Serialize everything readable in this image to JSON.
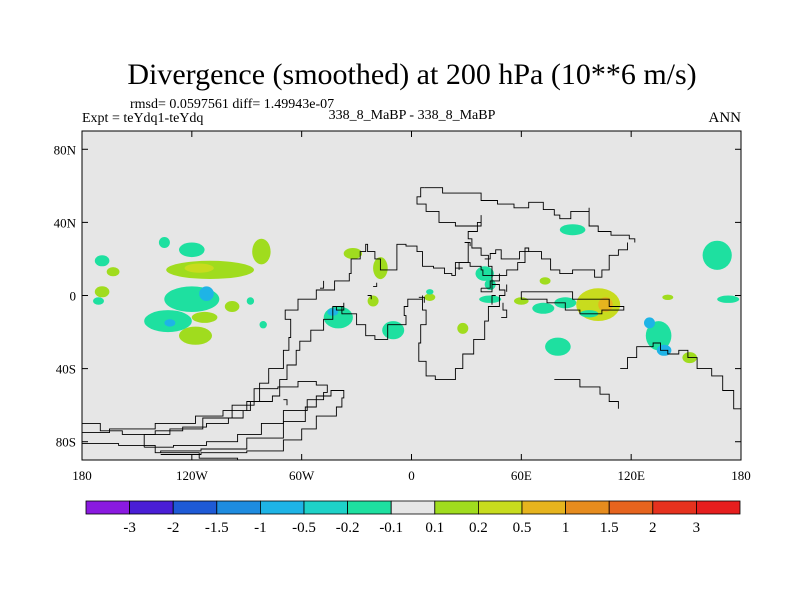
{
  "chart_data": {
    "type": "heatmap",
    "title": "Divergence (smoothed) at 200 hPa (10**6 m/s)",
    "subtitle_stats": "rmsd= 0.0597561 diff= 1.49943e-07",
    "left_label": "Expt = teYdq1-teYdq",
    "center_label": "338_8_MaBP - 338_8_MaBP",
    "right_label": "ANN",
    "xlim": [
      -180,
      180
    ],
    "ylim": [
      -90,
      90
    ],
    "x_ticks": [
      {
        "value": -180,
        "label": "180"
      },
      {
        "value": -120,
        "label": "120W"
      },
      {
        "value": -60,
        "label": "60W"
      },
      {
        "value": 0,
        "label": "0"
      },
      {
        "value": 60,
        "label": "60E"
      },
      {
        "value": 120,
        "label": "120E"
      },
      {
        "value": 180,
        "label": "180"
      }
    ],
    "y_ticks": [
      {
        "value": 80,
        "label": "80N"
      },
      {
        "value": 40,
        "label": "40N"
      },
      {
        "value": 0,
        "label": "0"
      },
      {
        "value": -40,
        "label": "40S"
      },
      {
        "value": -80,
        "label": "80S"
      }
    ],
    "background_color": "#e6e6e6",
    "colorbar": {
      "colors": [
        "#8a1ae0",
        "#4a1ed6",
        "#1e5ad6",
        "#1e8ce0",
        "#1eb4e6",
        "#1ed2c8",
        "#1ee0a0",
        "#e6e6e6",
        "#a0dc1e",
        "#c8dc1e",
        "#e6b41e",
        "#e68c1e",
        "#e6641e",
        "#e6321e",
        "#e61e1e"
      ],
      "labels": [
        "-3",
        "-2",
        "-1.5",
        "-1",
        "-0.5",
        "-0.2",
        "-0.1",
        "0.1",
        "0.2",
        "0.5",
        "1",
        "1.5",
        "2",
        "3"
      ]
    },
    "regions": [
      {
        "lon": -169,
        "lat": 19,
        "rlon": 4,
        "rlat": 3,
        "color": "#1ee0a0"
      },
      {
        "lon": -163,
        "lat": 13,
        "rlon": 3.5,
        "rlat": 2.5,
        "color": "#a0dc1e"
      },
      {
        "lon": -169,
        "lat": 2,
        "rlon": 4,
        "rlat": 3,
        "color": "#a0dc1e"
      },
      {
        "lon": -171,
        "lat": -3,
        "rlon": 3,
        "rlat": 2,
        "color": "#1ee0a0"
      },
      {
        "lon": -135,
        "lat": 29,
        "rlon": 3,
        "rlat": 3,
        "color": "#1ee0a0"
      },
      {
        "lon": -120,
        "lat": 25,
        "rlon": 7,
        "rlat": 4,
        "color": "#1ee0a0"
      },
      {
        "lon": -110,
        "lat": 14,
        "rlon": 24,
        "rlat": 5,
        "color": "#a0dc1e"
      },
      {
        "lon": -116,
        "lat": 15,
        "rlon": 8,
        "rlat": 2.5,
        "color": "#c8dc1e"
      },
      {
        "lon": -82,
        "lat": 24,
        "rlon": 5,
        "rlat": 7,
        "color": "#a0dc1e"
      },
      {
        "lon": -120,
        "lat": -2,
        "rlon": 15,
        "rlat": 7,
        "color": "#1ee0a0"
      },
      {
        "lon": -112,
        "lat": 1,
        "rlon": 4,
        "rlat": 4,
        "color": "#1eb4e6"
      },
      {
        "lon": -133,
        "lat": -14,
        "rlon": 13,
        "rlat": 6,
        "color": "#1ee0a0"
      },
      {
        "lon": -132,
        "lat": -15,
        "rlon": 3,
        "rlat": 2,
        "color": "#1eb4e6"
      },
      {
        "lon": -113,
        "lat": -12,
        "rlon": 7,
        "rlat": 3,
        "color": "#a0dc1e"
      },
      {
        "lon": -118,
        "lat": -22,
        "rlon": 9,
        "rlat": 5,
        "color": "#a0dc1e"
      },
      {
        "lon": -98,
        "lat": -6,
        "rlon": 4,
        "rlat": 3,
        "color": "#a0dc1e"
      },
      {
        "lon": -88,
        "lat": -3,
        "rlon": 2,
        "rlat": 2,
        "color": "#1ee0a0"
      },
      {
        "lon": -81,
        "lat": -16,
        "rlon": 2,
        "rlat": 2,
        "color": "#1ee0a0"
      },
      {
        "lon": -40,
        "lat": -12,
        "rlon": 8,
        "rlat": 6,
        "color": "#1ee0a0"
      },
      {
        "lon": -43,
        "lat": -9,
        "rlon": 3,
        "rlat": 2,
        "color": "#1eb4e6"
      },
      {
        "lon": -32,
        "lat": 23,
        "rlon": 5,
        "rlat": 3,
        "color": "#a0dc1e"
      },
      {
        "lon": -17,
        "lat": 15,
        "rlon": 4,
        "rlat": 6,
        "color": "#a0dc1e"
      },
      {
        "lon": -21,
        "lat": -3,
        "rlon": 3,
        "rlat": 3,
        "color": "#a0dc1e"
      },
      {
        "lon": -10,
        "lat": -19,
        "rlon": 6,
        "rlat": 5,
        "color": "#1ee0a0"
      },
      {
        "lon": 10,
        "lat": -1,
        "rlon": 3,
        "rlat": 2,
        "color": "#a0dc1e"
      },
      {
        "lon": 28,
        "lat": -18,
        "rlon": 3,
        "rlat": 3,
        "color": "#a0dc1e"
      },
      {
        "lon": 40,
        "lat": 12,
        "rlon": 5,
        "rlat": 4,
        "color": "#1ee0a0"
      },
      {
        "lon": 43,
        "lat": 6,
        "rlon": 3,
        "rlat": 3,
        "color": "#1ee0a0"
      },
      {
        "lon": 43,
        "lat": -2,
        "rlon": 6,
        "rlat": 2,
        "color": "#1ee0a0"
      },
      {
        "lon": 60,
        "lat": -3,
        "rlon": 4,
        "rlat": 2,
        "color": "#a0dc1e"
      },
      {
        "lon": 73,
        "lat": 8,
        "rlon": 3,
        "rlat": 2,
        "color": "#a0dc1e"
      },
      {
        "lon": 72,
        "lat": -7,
        "rlon": 6,
        "rlat": 3,
        "color": "#1ee0a0"
      },
      {
        "lon": 84,
        "lat": -4,
        "rlon": 6,
        "rlat": 3,
        "color": "#1ee0a0"
      },
      {
        "lon": 102,
        "lat": -5,
        "rlon": 12,
        "rlat": 9,
        "color": "#c8dc1e"
      },
      {
        "lon": 106,
        "lat": -5,
        "rlon": 4,
        "rlat": 4,
        "color": "#e6b41e"
      },
      {
        "lon": 97,
        "lat": -10,
        "rlon": 5,
        "rlat": 2,
        "color": "#1ee0a0"
      },
      {
        "lon": 88,
        "lat": 36,
        "rlon": 7,
        "rlat": 3,
        "color": "#1ee0a0"
      },
      {
        "lon": 80,
        "lat": -28,
        "rlon": 7,
        "rlat": 5,
        "color": "#1ee0a0"
      },
      {
        "lon": 135,
        "lat": -22,
        "rlon": 7,
        "rlat": 8,
        "color": "#1ee0a0"
      },
      {
        "lon": 130,
        "lat": -15,
        "rlon": 3,
        "rlat": 3,
        "color": "#1eb4e6"
      },
      {
        "lon": 138,
        "lat": -30,
        "rlon": 4,
        "rlat": 3,
        "color": "#1eb4e6"
      },
      {
        "lon": 152,
        "lat": -34,
        "rlon": 4,
        "rlat": 3,
        "color": "#a0dc1e"
      },
      {
        "lon": 167,
        "lat": 22,
        "rlon": 8,
        "rlat": 8,
        "color": "#1ee0a0"
      },
      {
        "lon": 173,
        "lat": -2,
        "rlon": 6,
        "rlat": 2,
        "color": "#1ee0a0"
      },
      {
        "lon": 140,
        "lat": -1,
        "rlon": 3,
        "rlat": 1.5,
        "color": "#a0dc1e"
      },
      {
        "lon": 10,
        "lat": 2,
        "rlon": 2,
        "rlat": 1.5,
        "color": "#1ee0a0"
      }
    ],
    "coastlines": [
      [
        [
          -180,
          -70
        ],
        [
          -170,
          -74
        ],
        [
          -158,
          -76
        ],
        [
          -140,
          -74
        ],
        [
          -125,
          -72
        ],
        [
          -112,
          -70
        ],
        [
          -100,
          -67
        ],
        [
          -92,
          -63
        ],
        [
          -88,
          -58
        ],
        [
          -83,
          -48
        ],
        [
          -78,
          -40
        ],
        [
          -70,
          -30
        ],
        [
          -67,
          -23
        ],
        [
          -66,
          -13
        ],
        [
          -69,
          -8
        ],
        [
          -62,
          -2
        ],
        [
          -52,
          3
        ],
        [
          -42,
          8
        ],
        [
          -34,
          12
        ],
        [
          -33,
          20
        ],
        [
          -28,
          24
        ],
        [
          -25,
          28
        ],
        [
          -24,
          24
        ],
        [
          -20,
          20
        ],
        [
          -17,
          14
        ],
        [
          -8,
          17
        ],
        [
          -8,
          28
        ],
        [
          -3,
          27
        ],
        [
          3,
          24
        ],
        [
          6,
          16
        ],
        [
          12,
          15
        ],
        [
          18,
          12
        ],
        [
          22,
          11
        ],
        [
          24,
          18
        ],
        [
          32,
          16
        ],
        [
          38,
          14
        ],
        [
          39,
          11
        ],
        [
          44,
          6
        ],
        [
          48,
          3
        ],
        [
          51,
          0
        ],
        [
          48,
          -6
        ],
        [
          42,
          -14
        ],
        [
          40,
          -24
        ],
        [
          34,
          -32
        ],
        [
          28,
          -40
        ],
        [
          24,
          -46
        ],
        [
          13,
          -44
        ],
        [
          8,
          -36
        ],
        [
          4,
          -26
        ],
        [
          5,
          -16
        ],
        [
          8,
          -8
        ],
        [
          6,
          -2
        ],
        [
          6,
          0
        ],
        [
          6,
          -2
        ],
        [
          -2,
          -6
        ],
        [
          -4,
          -11
        ],
        [
          -3,
          -16
        ],
        [
          -13,
          -24
        ],
        [
          -20,
          -22
        ],
        [
          -25,
          -16
        ],
        [
          -30,
          -10
        ],
        [
          -38,
          -6
        ],
        [
          -43,
          -13
        ],
        [
          -48,
          -19
        ],
        [
          -55,
          -25
        ],
        [
          -61,
          -30
        ],
        [
          -63,
          -38
        ],
        [
          -68,
          -46
        ],
        [
          -72,
          -55
        ],
        [
          -76,
          -58
        ],
        [
          -82,
          -58
        ],
        [
          -90,
          -63
        ],
        [
          -103,
          -66
        ],
        [
          -118,
          -70
        ],
        [
          -140,
          -73
        ],
        [
          -165,
          -75
        ],
        [
          -180,
          -75
        ]
      ],
      [
        [
          -146,
          -83
        ],
        [
          -130,
          -82
        ],
        [
          -112,
          -80
        ],
        [
          -95,
          -76
        ],
        [
          -82,
          -70
        ],
        [
          -70,
          -63
        ],
        [
          -57,
          -57
        ],
        [
          -48,
          -53
        ],
        [
          -46,
          -49
        ],
        [
          -52,
          -47
        ],
        [
          -62,
          -50
        ],
        [
          -73,
          -51
        ],
        [
          -86,
          -60
        ],
        [
          -98,
          -67
        ],
        [
          -114,
          -73
        ],
        [
          -132,
          -76
        ],
        [
          -146,
          -79
        ],
        [
          -146,
          -83
        ]
      ],
      [
        [
          -137,
          -87
        ],
        [
          -115,
          -86
        ],
        [
          -90,
          -85
        ],
        [
          -70,
          -79
        ],
        [
          -60,
          -73
        ],
        [
          -52,
          -66
        ],
        [
          -41,
          -61
        ],
        [
          -38,
          -56
        ],
        [
          -37,
          -52
        ],
        [
          -44,
          -55
        ],
        [
          -52,
          -61
        ],
        [
          -58,
          -69
        ],
        [
          -70,
          -78
        ],
        [
          -90,
          -84
        ],
        [
          -115,
          -85
        ],
        [
          -137,
          -86
        ]
      ],
      [
        [
          -180,
          -81
        ],
        [
          -160,
          -82
        ],
        [
          -140,
          -86
        ],
        [
          -116,
          -89
        ],
        [
          -95,
          -90
        ],
        [
          -60,
          -90
        ]
      ],
      [
        [
          7,
          59
        ],
        [
          17,
          59
        ],
        [
          17,
          56
        ],
        [
          28,
          56
        ],
        [
          38,
          52
        ],
        [
          47,
          50
        ],
        [
          56,
          48
        ],
        [
          64,
          51
        ],
        [
          72,
          47
        ],
        [
          78,
          44
        ],
        [
          81,
          42
        ],
        [
          87,
          46
        ],
        [
          97,
          48
        ],
        [
          97,
          38
        ],
        [
          102,
          35
        ],
        [
          109,
          33
        ],
        [
          119,
          31
        ],
        [
          122,
          29
        ]
      ],
      [
        [
          7,
          59
        ],
        [
          5,
          54
        ],
        [
          3,
          50
        ],
        [
          8,
          46
        ],
        [
          15,
          40
        ],
        [
          24,
          38
        ],
        [
          34,
          38
        ],
        [
          38,
          44
        ],
        [
          38,
          40
        ],
        [
          36,
          35
        ],
        [
          31,
          31
        ],
        [
          33,
          26
        ],
        [
          38,
          22
        ],
        [
          42,
          16
        ],
        [
          44,
          11
        ],
        [
          52,
          14
        ],
        [
          58,
          18
        ],
        [
          62,
          24
        ],
        [
          71,
          20
        ],
        [
          76,
          14
        ],
        [
          81,
          12
        ],
        [
          88,
          14
        ],
        [
          93,
          14
        ],
        [
          100,
          10
        ],
        [
          104,
          14
        ],
        [
          108,
          22
        ],
        [
          113,
          25
        ],
        [
          118,
          29
        ]
      ],
      [
        [
          60,
          0
        ],
        [
          60,
          2
        ],
        [
          88,
          2
        ],
        [
          88,
          -2
        ],
        [
          104,
          -2
        ],
        [
          108,
          -6
        ],
        [
          116,
          -8
        ],
        [
          104,
          -10
        ],
        [
          92,
          -8
        ],
        [
          84,
          -4
        ],
        [
          74,
          -2
        ],
        [
          60,
          -2
        ],
        [
          60,
          0
        ]
      ],
      [
        [
          114,
          -40
        ],
        [
          118,
          -34
        ],
        [
          123,
          -28
        ],
        [
          132,
          -26
        ],
        [
          136,
          -30
        ],
        [
          140,
          -32
        ],
        [
          146,
          -30
        ],
        [
          151,
          -34
        ],
        [
          156,
          -40
        ],
        [
          164,
          -44
        ],
        [
          170,
          -52
        ],
        [
          176,
          -62
        ],
        [
          180,
          -70
        ]
      ],
      [
        [
          78,
          -46
        ],
        [
          92,
          -50
        ],
        [
          103,
          -54
        ],
        [
          108,
          -58
        ],
        [
          113,
          -62
        ]
      ],
      [
        [
          40,
          20
        ],
        [
          43,
          23
        ],
        [
          46,
          25
        ],
        [
          49,
          20
        ],
        [
          56,
          20
        ],
        [
          59,
          24
        ],
        [
          62,
          26
        ],
        [
          64,
          24
        ]
      ],
      [
        [
          38,
          4
        ],
        [
          43,
          8
        ],
        [
          48,
          12
        ],
        [
          48,
          8
        ],
        [
          44,
          2
        ],
        [
          38,
          4
        ]
      ],
      [
        [
          31,
          29
        ],
        [
          31,
          18
        ],
        [
          26,
          14
        ]
      ],
      [
        [
          46,
          0
        ],
        [
          44,
          -5
        ]
      ],
      [
        [
          49,
          -12
        ],
        [
          52,
          -8
        ],
        [
          50,
          -4
        ]
      ],
      [
        [
          4,
          -1
        ],
        [
          7,
          -4
        ]
      ],
      [
        [
          -41,
          -6
        ],
        [
          -37,
          -4
        ],
        [
          -37,
          -8
        ],
        [
          -41,
          -8
        ],
        [
          -41,
          -6
        ]
      ],
      [
        [
          -50,
          4
        ],
        [
          -48,
          8
        ]
      ],
      [
        [
          -21,
          5
        ],
        [
          -19,
          7
        ]
      ],
      [
        [
          -24,
          0
        ],
        [
          -22,
          -2
        ]
      ],
      [
        [
          29,
          29
        ],
        [
          32,
          27
        ]
      ],
      [
        [
          52,
          6
        ],
        [
          52,
          2
        ]
      ],
      [
        [
          24,
          15
        ],
        [
          28,
          15
        ]
      ],
      [
        [
          -70,
          -57
        ],
        [
          -68,
          -60
        ]
      ]
    ]
  }
}
